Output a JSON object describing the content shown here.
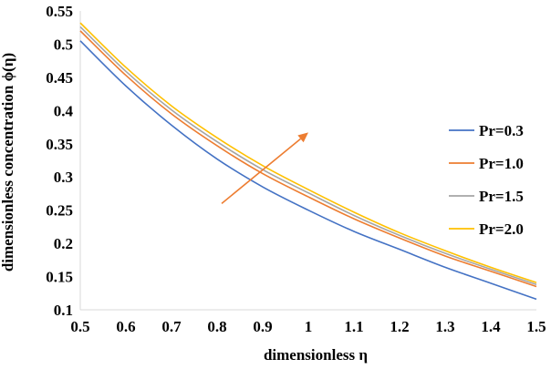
{
  "chart_data": {
    "type": "line",
    "xlabel": "dimensionless η",
    "ylabel": "dimensionless concentration ϕ(η)",
    "xlim": [
      0.5,
      1.5
    ],
    "ylim": [
      0.1,
      0.55
    ],
    "x_ticks": [
      "0.5",
      "0.6",
      "0.7",
      "0.8",
      "0.9",
      "1",
      "1.1",
      "1.2",
      "1.3",
      "1.4",
      "1.5"
    ],
    "y_ticks": [
      "0.1",
      "0.15",
      "0.2",
      "0.25",
      "0.3",
      "0.35",
      "0.4",
      "0.45",
      "0.5",
      "0.55"
    ],
    "grid": false,
    "legend_position": "right",
    "x": [
      0.5,
      0.6,
      0.7,
      0.8,
      0.9,
      1.0,
      1.1,
      1.2,
      1.3,
      1.4,
      1.5
    ],
    "series": [
      {
        "name": "Pr=0.3",
        "color": "#4472C4",
        "values": [
          0.505,
          0.437,
          0.378,
          0.327,
          0.285,
          0.25,
          0.218,
          0.191,
          0.164,
          0.14,
          0.116
        ]
      },
      {
        "name": "Pr=1.0",
        "color": "#ED7D31",
        "values": [
          0.52,
          0.453,
          0.395,
          0.347,
          0.305,
          0.27,
          0.237,
          0.208,
          0.181,
          0.158,
          0.135
        ]
      },
      {
        "name": "Pr=1.5",
        "color": "#A5A5A5",
        "values": [
          0.526,
          0.459,
          0.401,
          0.353,
          0.311,
          0.276,
          0.242,
          0.212,
          0.185,
          0.161,
          0.138
        ]
      },
      {
        "name": "Pr=2.0",
        "color": "#FFC000",
        "values": [
          0.532,
          0.465,
          0.407,
          0.359,
          0.317,
          0.281,
          0.247,
          0.216,
          0.189,
          0.164,
          0.141
        ]
      }
    ],
    "annotation": {
      "type": "arrow",
      "color": "#ED7D31",
      "from": [
        0.81,
        0.26
      ],
      "to": [
        1.0,
        0.367
      ]
    }
  }
}
